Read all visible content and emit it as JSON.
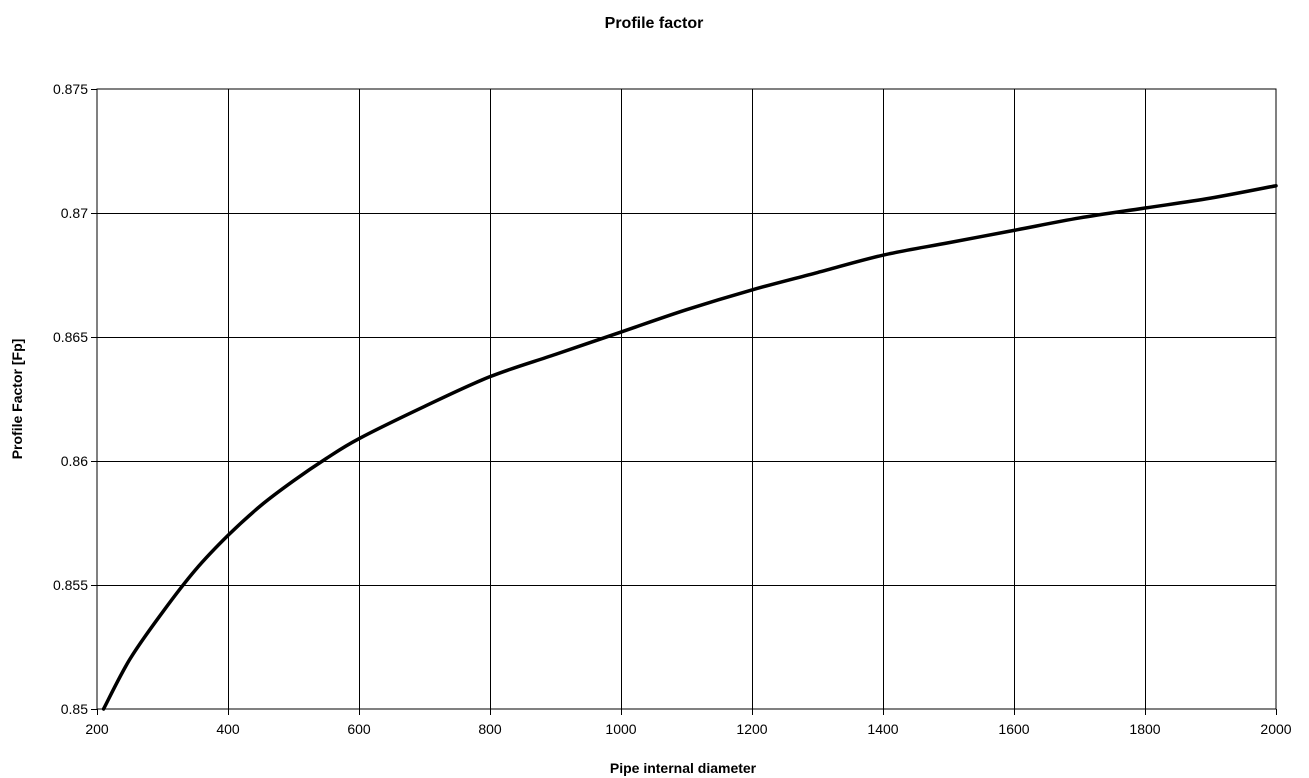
{
  "chart_data": {
    "type": "line",
    "title": "Profile factor",
    "xlabel": "Pipe internal diameter",
    "ylabel": "Profile Factor [Fp]",
    "xlim": [
      200,
      2000
    ],
    "ylim": [
      0.85,
      0.875
    ],
    "x_ticks": [
      "200",
      "400",
      "600",
      "800",
      "1000",
      "1200",
      "1400",
      "1600",
      "1800",
      "2000"
    ],
    "y_ticks": [
      "0.85",
      "0.855",
      "0.86",
      "0.865",
      "0.87",
      "0.875"
    ],
    "grid": true,
    "legend": "none",
    "series": [
      {
        "color": "#000000",
        "x": [
          210,
          250,
          300,
          350,
          400,
          450,
          500,
          550,
          600,
          700,
          800,
          900,
          1000,
          1100,
          1200,
          1300,
          1400,
          1500,
          1600,
          1700,
          1800,
          1900,
          2000
        ],
        "y": [
          0.85,
          0.852,
          0.8539,
          0.8556,
          0.857,
          0.8582,
          0.8592,
          0.8601,
          0.8609,
          0.8622,
          0.8634,
          0.8643,
          0.8652,
          0.8661,
          0.8669,
          0.8676,
          0.8683,
          0.8688,
          0.8693,
          0.8698,
          0.8702,
          0.8706,
          0.8711
        ]
      }
    ]
  }
}
